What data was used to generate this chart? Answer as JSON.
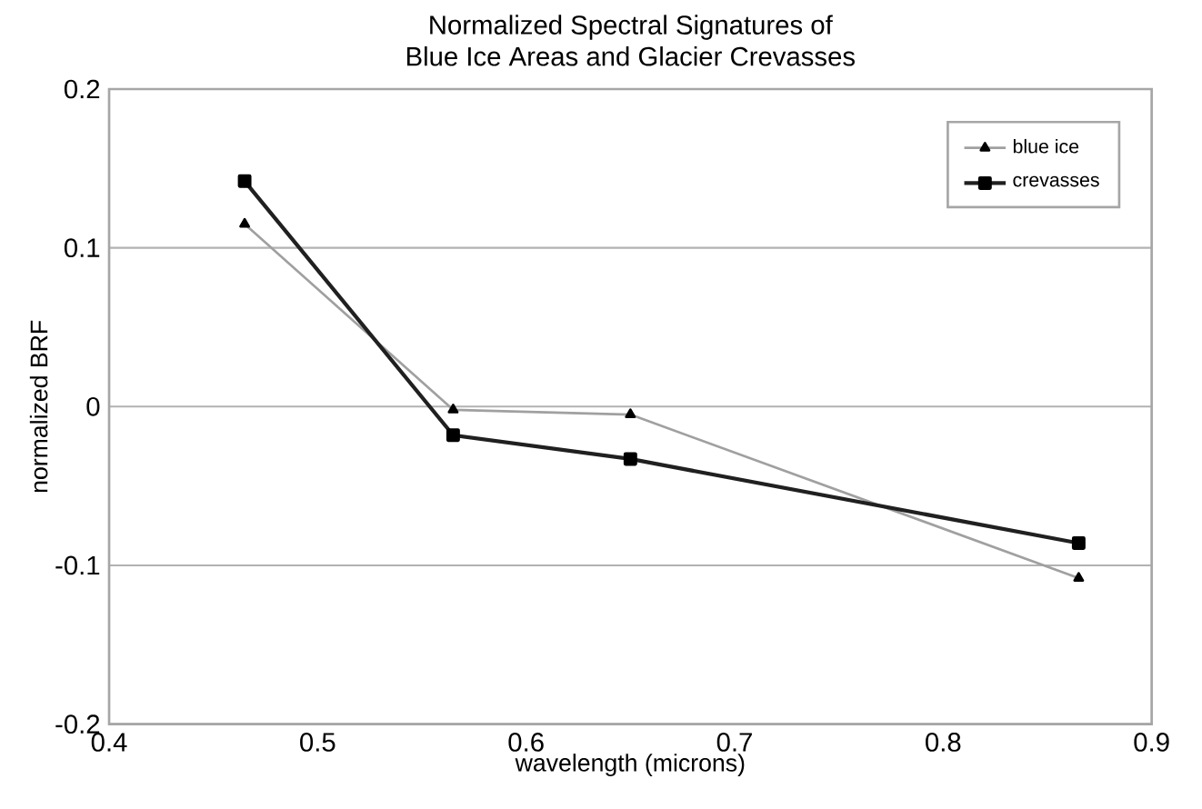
{
  "chart_data": {
    "type": "line",
    "title": "Normalized Spectral Signatures of\nBlue Ice Areas and Glacier Crevasses",
    "xlabel": "wavelength (microns)",
    "ylabel": "normalized BRF",
    "series": [
      {
        "name": "blue ice",
        "color": "#a0a0a0",
        "marker": "triangle",
        "x": [
          0.465,
          0.565,
          0.65,
          0.865
        ],
        "values": [
          0.115,
          -0.002,
          -0.005,
          -0.108
        ]
      },
      {
        "name": "crevasses",
        "color": "#202020",
        "marker": "square",
        "x": [
          0.465,
          0.565,
          0.65,
          0.865
        ],
        "values": [
          0.142,
          -0.018,
          -0.033,
          -0.086
        ]
      }
    ],
    "xlim": [
      0.4,
      0.9
    ],
    "xticks": [
      0.4,
      0.5,
      0.6,
      0.7,
      0.8,
      0.9
    ],
    "ylim": [
      -0.2,
      0.2
    ],
    "yticks": [
      -0.2,
      -0.1,
      0,
      0.1,
      0.2
    ],
    "grid": "y",
    "legend": "top right"
  }
}
